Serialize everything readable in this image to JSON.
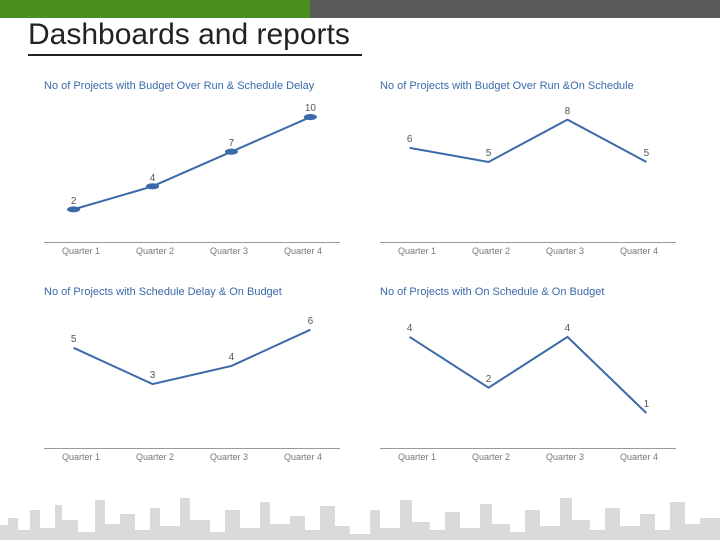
{
  "page": {
    "title": "Dashboards and reports",
    "accent_green": "#4a8f1f",
    "accent_gray": "#5a5a5a",
    "background": "#ffffff"
  },
  "categories": [
    "Quarter 1",
    "Quarter 2",
    "Quarter 3",
    "Quarter 4"
  ],
  "charts": [
    {
      "id": "chart-tl",
      "title": "No of Projects with Budget Over Run & Schedule Delay",
      "title_color": "#3a6aa8",
      "title_fontsize": 11,
      "type": "line",
      "values": [
        2,
        4,
        7,
        10
      ],
      "ylim": [
        0,
        11
      ],
      "line_color": "#3a6aa8",
      "line_width": 2,
      "marker": "circle",
      "marker_size": 4,
      "marker_color": "#3a6aa8",
      "label_color": "#555",
      "label_fontsize": 10,
      "axis_color": "#9a9a9a",
      "tick_label_color": "#777",
      "tick_label_fontsize": 9,
      "background_color": "#ffffff"
    },
    {
      "id": "chart-tr",
      "title": "No of Projects with Budget Over Run &On Schedule",
      "title_color": "#3a6aa8",
      "title_fontsize": 11,
      "type": "line",
      "values": [
        6,
        5,
        8,
        5
      ],
      "ylim": [
        0,
        9
      ],
      "line_color": "#3a6aa8",
      "line_width": 2,
      "marker": "none",
      "marker_size": 0,
      "marker_color": "#3a6aa8",
      "label_color": "#555",
      "label_fontsize": 10,
      "axis_color": "#9a9a9a",
      "tick_label_color": "#777",
      "tick_label_fontsize": 9,
      "background_color": "#ffffff"
    },
    {
      "id": "chart-bl",
      "title": "No of Projects with Schedule Delay & On Budget",
      "title_color": "#3a6aa8",
      "title_fontsize": 11,
      "type": "line",
      "values": [
        5,
        3,
        4,
        6
      ],
      "ylim": [
        0,
        7
      ],
      "line_color": "#3a6aa8",
      "line_width": 2,
      "marker": "none",
      "marker_size": 0,
      "marker_color": "#3a6aa8",
      "label_color": "#555",
      "label_fontsize": 10,
      "axis_color": "#9a9a9a",
      "tick_label_color": "#777",
      "tick_label_fontsize": 9,
      "background_color": "#ffffff"
    },
    {
      "id": "chart-br",
      "title": "No of Projects with On Schedule & On Budget",
      "title_color": "#3a6aa8",
      "title_fontsize": 11,
      "type": "line",
      "values": [
        4,
        2,
        4,
        1
      ],
      "ylim": [
        0,
        5
      ],
      "line_color": "#3a6aa8",
      "line_width": 2,
      "marker": "none",
      "marker_size": 0,
      "marker_color": "#3a6aa8",
      "label_color": "#555",
      "label_fontsize": 10,
      "axis_color": "#9a9a9a",
      "tick_label_color": "#777",
      "tick_label_fontsize": 9,
      "background_color": "#ffffff"
    }
  ],
  "skyline_color": "#d9d9d9"
}
